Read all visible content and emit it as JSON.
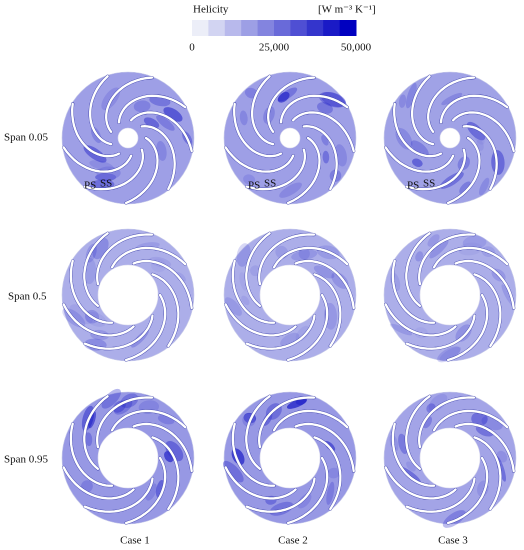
{
  "colorbar": {
    "title": "Helicity",
    "unit": "[W m⁻³ K⁻¹]",
    "ticks": [
      "0",
      "25,000",
      "50,000"
    ]
  },
  "rows": [
    "Span 0.05",
    "Span 0.5",
    "Span 0.95"
  ],
  "columns": [
    "Case 1",
    "Case 2",
    "Case 3"
  ],
  "annotations": {
    "pressure_side": "PS",
    "suction_side": "SS"
  }
}
